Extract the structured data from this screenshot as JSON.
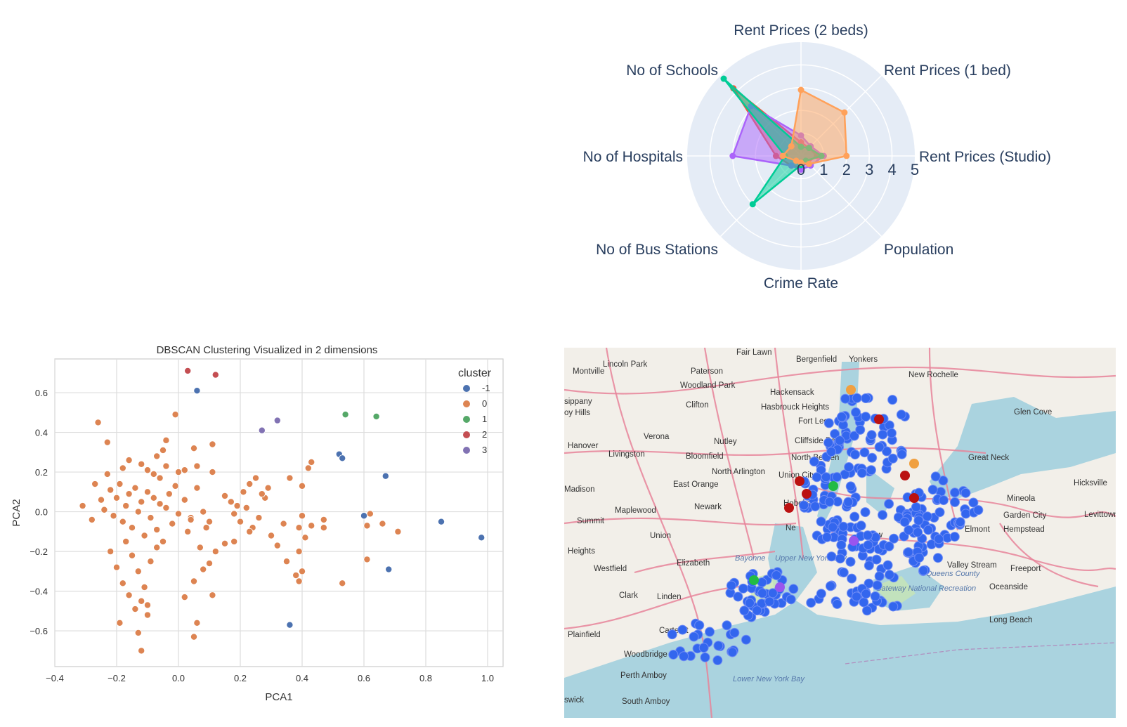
{
  "chart_data": [
    {
      "type": "radar",
      "categories": [
        "Rent Prices (Studio)",
        "Rent Prices (1 bed)",
        "Rent Prices (2 beds)",
        "No of Schools",
        "No of Hospitals",
        "No of Bus Stations",
        "Crime Rate",
        "Population"
      ],
      "radial_ticks": [
        "0",
        "1",
        "2",
        "3",
        "4",
        "5"
      ],
      "range": [
        0,
        5
      ],
      "grid": true,
      "legend": "none",
      "series": [
        {
          "color": "#ef553b",
          "values": [
            0.7,
            0.5,
            0.6,
            4.2,
            1.1,
            0.6,
            0.5,
            0.4
          ]
        },
        {
          "color": "#ab63fa",
          "values": [
            1.0,
            0.6,
            0.9,
            3.1,
            3.0,
            0.6,
            0.6,
            0.6
          ]
        },
        {
          "color": "#00cc96",
          "values": [
            0.9,
            0.5,
            0.4,
            4.8,
            0.7,
            3.0,
            0.4,
            0.3
          ]
        },
        {
          "color": "#ffa15a",
          "values": [
            2.0,
            2.7,
            2.9,
            0.6,
            0.8,
            0.3,
            0.3,
            0.5
          ]
        }
      ]
    },
    {
      "type": "scatter",
      "title": "DBSCAN Clustering Visualized in 2 dimensions",
      "xlabel": "PCA1",
      "ylabel": "PCA2",
      "xlim": [
        -0.4,
        1.05
      ],
      "ylim": [
        -0.78,
        0.77
      ],
      "xticks": [
        "−0.4",
        "−0.2",
        "0.0",
        "0.2",
        "0.4",
        "0.6",
        "0.8",
        "1.0"
      ],
      "xtick_values": [
        -0.4,
        -0.2,
        0.0,
        0.2,
        0.4,
        0.6,
        0.8,
        1.0
      ],
      "yticks": [
        "−0.6",
        "−0.4",
        "−0.2",
        "0.0",
        "0.2",
        "0.4",
        "0.6"
      ],
      "ytick_values": [
        -0.6,
        -0.4,
        -0.2,
        0.0,
        0.2,
        0.4,
        0.6
      ],
      "legend_title": "cluster",
      "legend_position": "top-right",
      "grid": true,
      "series": [
        {
          "name": "-1",
          "color": "#4c72b0",
          "points": [
            [
              0.06,
              0.61
            ],
            [
              0.52,
              0.29
            ],
            [
              0.53,
              0.27
            ],
            [
              0.67,
              0.18
            ],
            [
              0.6,
              -0.02
            ],
            [
              0.85,
              -0.05
            ],
            [
              0.98,
              -0.13
            ],
            [
              0.68,
              -0.29
            ],
            [
              0.36,
              -0.57
            ]
          ]
        },
        {
          "name": "0",
          "color": "#dd8452",
          "points": [
            [
              -0.26,
              0.45
            ],
            [
              -0.23,
              0.35
            ],
            [
              -0.04,
              0.36
            ],
            [
              -0.01,
              0.49
            ],
            [
              0.05,
              0.32
            ],
            [
              0.11,
              0.34
            ],
            [
              -0.07,
              0.28
            ],
            [
              -0.05,
              0.31
            ],
            [
              -0.18,
              0.22
            ],
            [
              -0.16,
              0.26
            ],
            [
              -0.12,
              0.24
            ],
            [
              -0.1,
              0.21
            ],
            [
              -0.08,
              0.19
            ],
            [
              -0.06,
              0.17
            ],
            [
              -0.04,
              0.23
            ],
            [
              0.0,
              0.2
            ],
            [
              0.02,
              0.21
            ],
            [
              0.06,
              0.23
            ],
            [
              0.11,
              0.2
            ],
            [
              0.15,
              0.08
            ],
            [
              0.17,
              0.05
            ],
            [
              -0.31,
              0.03
            ],
            [
              -0.28,
              -0.04
            ],
            [
              -0.27,
              0.14
            ],
            [
              -0.25,
              0.06
            ],
            [
              -0.24,
              0.01
            ],
            [
              -0.23,
              0.19
            ],
            [
              -0.22,
              0.11
            ],
            [
              -0.21,
              -0.02
            ],
            [
              -0.2,
              0.07
            ],
            [
              -0.19,
              0.14
            ],
            [
              -0.18,
              -0.05
            ],
            [
              -0.17,
              0.03
            ],
            [
              -0.16,
              0.09
            ],
            [
              -0.15,
              -0.08
            ],
            [
              -0.14,
              0.12
            ],
            [
              -0.13,
              0.0
            ],
            [
              -0.12,
              0.05
            ],
            [
              -0.11,
              -0.12
            ],
            [
              -0.1,
              0.1
            ],
            [
              -0.09,
              -0.03
            ],
            [
              -0.08,
              0.07
            ],
            [
              -0.07,
              -0.09
            ],
            [
              -0.06,
              0.04
            ],
            [
              -0.05,
              -0.15
            ],
            [
              -0.04,
              0.02
            ],
            [
              -0.03,
              0.09
            ],
            [
              -0.02,
              -0.06
            ],
            [
              -0.01,
              0.13
            ],
            [
              0.0,
              -0.01
            ],
            [
              0.02,
              0.06
            ],
            [
              0.04,
              -0.03
            ],
            [
              0.06,
              0.12
            ],
            [
              0.08,
              0.0
            ],
            [
              0.1,
              -0.05
            ],
            [
              -0.22,
              -0.2
            ],
            [
              -0.2,
              -0.28
            ],
            [
              -0.18,
              -0.36
            ],
            [
              -0.16,
              -0.42
            ],
            [
              -0.14,
              -0.49
            ],
            [
              -0.12,
              -0.45
            ],
            [
              -0.1,
              -0.52
            ],
            [
              -0.17,
              -0.15
            ],
            [
              -0.15,
              -0.22
            ],
            [
              -0.13,
              -0.3
            ],
            [
              -0.11,
              -0.38
            ],
            [
              -0.09,
              -0.25
            ],
            [
              -0.07,
              -0.18
            ],
            [
              -0.19,
              -0.56
            ],
            [
              -0.13,
              -0.61
            ],
            [
              -0.12,
              -0.7
            ],
            [
              -0.1,
              -0.47
            ],
            [
              0.05,
              -0.63
            ],
            [
              0.06,
              -0.56
            ],
            [
              0.05,
              -0.35
            ],
            [
              0.02,
              -0.43
            ],
            [
              0.11,
              -0.42
            ],
            [
              0.08,
              -0.29
            ],
            [
              0.1,
              -0.26
            ],
            [
              0.12,
              -0.2
            ],
            [
              0.15,
              -0.16
            ],
            [
              0.07,
              -0.18
            ],
            [
              0.03,
              -0.1
            ],
            [
              0.09,
              -0.08
            ],
            [
              0.04,
              -0.04
            ],
            [
              0.18,
              -0.01
            ],
            [
              0.2,
              -0.05
            ],
            [
              0.22,
              0.02
            ],
            [
              0.24,
              -0.08
            ],
            [
              0.26,
              -0.03
            ],
            [
              0.28,
              0.07
            ],
            [
              0.3,
              -0.12
            ],
            [
              0.32,
              -0.17
            ],
            [
              0.34,
              -0.06
            ],
            [
              0.19,
              0.03
            ],
            [
              0.21,
              0.1
            ],
            [
              0.23,
              0.14
            ],
            [
              0.25,
              0.17
            ],
            [
              0.27,
              0.09
            ],
            [
              0.29,
              0.12
            ],
            [
              0.18,
              -0.15
            ],
            [
              0.23,
              -0.1
            ],
            [
              0.35,
              -0.25
            ],
            [
              0.38,
              -0.32
            ],
            [
              0.39,
              -0.08
            ],
            [
              0.4,
              -0.02
            ],
            [
              0.41,
              -0.13
            ],
            [
              0.43,
              -0.07
            ],
            [
              0.4,
              0.13
            ],
            [
              0.42,
              0.22
            ],
            [
              0.36,
              0.17
            ],
            [
              0.39,
              -0.2
            ],
            [
              0.4,
              -0.3
            ],
            [
              0.39,
              -0.35
            ],
            [
              0.47,
              -0.04
            ],
            [
              0.47,
              -0.08
            ],
            [
              0.53,
              -0.36
            ],
            [
              0.61,
              -0.24
            ],
            [
              0.61,
              -0.07
            ],
            [
              0.62,
              -0.01
            ],
            [
              0.66,
              -0.06
            ],
            [
              0.71,
              -0.1
            ],
            [
              0.43,
              0.25
            ]
          ]
        },
        {
          "name": "1",
          "color": "#55a868",
          "points": [
            [
              0.54,
              0.49
            ],
            [
              0.64,
              0.48
            ]
          ]
        },
        {
          "name": "2",
          "color": "#c44e52",
          "points": [
            [
              0.03,
              0.71
            ],
            [
              0.12,
              0.69
            ]
          ]
        },
        {
          "name": "3",
          "color": "#8172b3",
          "points": [
            [
              0.27,
              0.41
            ],
            [
              0.32,
              0.46
            ]
          ]
        }
      ]
    }
  ],
  "map": {
    "labels": [
      "Fair Lawn",
      "Bergenfield",
      "Yonkers",
      "Lincoln Park",
      "Montville",
      "Paterson",
      "Woodland Park",
      "Hackensack",
      "New Rochelle",
      "Clifton",
      "Hasbrouck Heights",
      "Fort Lee",
      "Glen Cove",
      "Verona",
      "Nutley",
      "Cliffside Park",
      "Hanover",
      "Livingston",
      "Bloomfield",
      "North Bergen",
      "Great Neck",
      "North Arlington",
      "Union City",
      "East Orange",
      "Madison",
      "Newark",
      "Hoboken",
      "Mineola",
      "Hicksville",
      "Maplewood",
      "Garden City",
      "Levittown",
      "Summit",
      "Union",
      "Elmont",
      "Hempstead",
      "Ne",
      "New",
      "Elizabeth",
      "Bayonne",
      "Upper New York Bay",
      "Valley Stream",
      "Freeport",
      "Westfield",
      "Queens County",
      "Clark",
      "Linden",
      "Oceanside",
      "Gateway National Recreation",
      "Carteret",
      "Long Beach",
      "Woodbridge",
      "Perth Amboy",
      "Lower New York Bay",
      "South Amboy",
      "swick",
      "Plainfield",
      "Heights",
      "sippany",
      "oy Hills"
    ],
    "marker_colors": {
      "blue": "#3366ee",
      "red": "#bb1111",
      "orange": "#f0a040",
      "green": "#22bb44",
      "purple": "#9955ee"
    }
  }
}
